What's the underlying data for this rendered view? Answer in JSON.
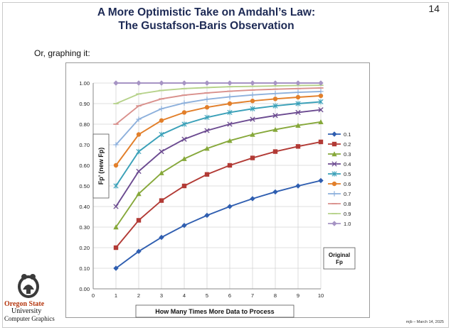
{
  "slide": {
    "title_line1": "A More Optimistic Take on Amdahl’s Law:",
    "title_line2": "The Gustafson-Baris Observation",
    "number": "14",
    "subtitle": "Or, graphing it:",
    "footer": "mjb – March 14, 2025"
  },
  "logo": {
    "name": "Oregon State",
    "line2": "University",
    "line3": "Computer Graphics"
  },
  "chart_data": {
    "type": "line",
    "title": "",
    "xlabel": "How Many Times More Data to Process",
    "ylabel": "Fp’ (new Fp)",
    "legend_title": "Original Fp",
    "legend_position": "right",
    "xlim": [
      0,
      10
    ],
    "ylim": [
      0,
      1
    ],
    "grid": true,
    "x": [
      1,
      2,
      3,
      4,
      5,
      6,
      7,
      8,
      9,
      10
    ],
    "x_ticks": [
      "0",
      "1",
      "2",
      "3",
      "4",
      "5",
      "6",
      "7",
      "8",
      "9",
      "10"
    ],
    "y_ticks": [
      "0.00",
      "0.10",
      "0.20",
      "0.30",
      "0.40",
      "0.50",
      "0.60",
      "0.70",
      "0.80",
      "0.90",
      "1.00"
    ],
    "series": [
      {
        "name": "0.1",
        "color": "#2f5eb0",
        "marker": "diamond",
        "values": [
          0.1,
          0.182,
          0.25,
          0.308,
          0.357,
          0.4,
          0.438,
          0.471,
          0.5,
          0.526
        ]
      },
      {
        "name": "0.2",
        "color": "#b23a35",
        "marker": "square",
        "values": [
          0.2,
          0.333,
          0.429,
          0.5,
          0.556,
          0.6,
          0.636,
          0.667,
          0.692,
          0.714
        ]
      },
      {
        "name": "0.3",
        "color": "#86a83a",
        "marker": "triangle",
        "values": [
          0.3,
          0.462,
          0.563,
          0.632,
          0.682,
          0.72,
          0.75,
          0.774,
          0.794,
          0.811
        ]
      },
      {
        "name": "0.4",
        "color": "#6b4a90",
        "marker": "x",
        "values": [
          0.4,
          0.571,
          0.667,
          0.727,
          0.769,
          0.8,
          0.824,
          0.842,
          0.857,
          0.87
        ]
      },
      {
        "name": "0.5",
        "color": "#3aa0b8",
        "marker": "star",
        "values": [
          0.5,
          0.667,
          0.75,
          0.8,
          0.833,
          0.857,
          0.875,
          0.889,
          0.9,
          0.909
        ]
      },
      {
        "name": "0.6",
        "color": "#e27f2a",
        "marker": "circle",
        "values": [
          0.6,
          0.75,
          0.818,
          0.857,
          0.882,
          0.9,
          0.913,
          0.923,
          0.931,
          0.938
        ]
      },
      {
        "name": "0.7",
        "color": "#8db0dc",
        "marker": "plus",
        "values": [
          0.7,
          0.824,
          0.875,
          0.903,
          0.921,
          0.933,
          0.942,
          0.949,
          0.955,
          0.959
        ]
      },
      {
        "name": "0.8",
        "color": "#d9908c",
        "marker": "dash",
        "values": [
          0.8,
          0.889,
          0.923,
          0.941,
          0.952,
          0.96,
          0.966,
          0.97,
          0.973,
          0.976
        ]
      },
      {
        "name": "0.9",
        "color": "#b6d28a",
        "marker": "dash",
        "values": [
          0.9,
          0.947,
          0.964,
          0.973,
          0.978,
          0.982,
          0.984,
          0.986,
          0.988,
          0.989
        ]
      },
      {
        "name": "1.0",
        "color": "#a694c4",
        "marker": "diamond",
        "values": [
          1.0,
          1.0,
          1.0,
          1.0,
          1.0,
          1.0,
          1.0,
          1.0,
          1.0,
          1.0
        ]
      }
    ]
  }
}
